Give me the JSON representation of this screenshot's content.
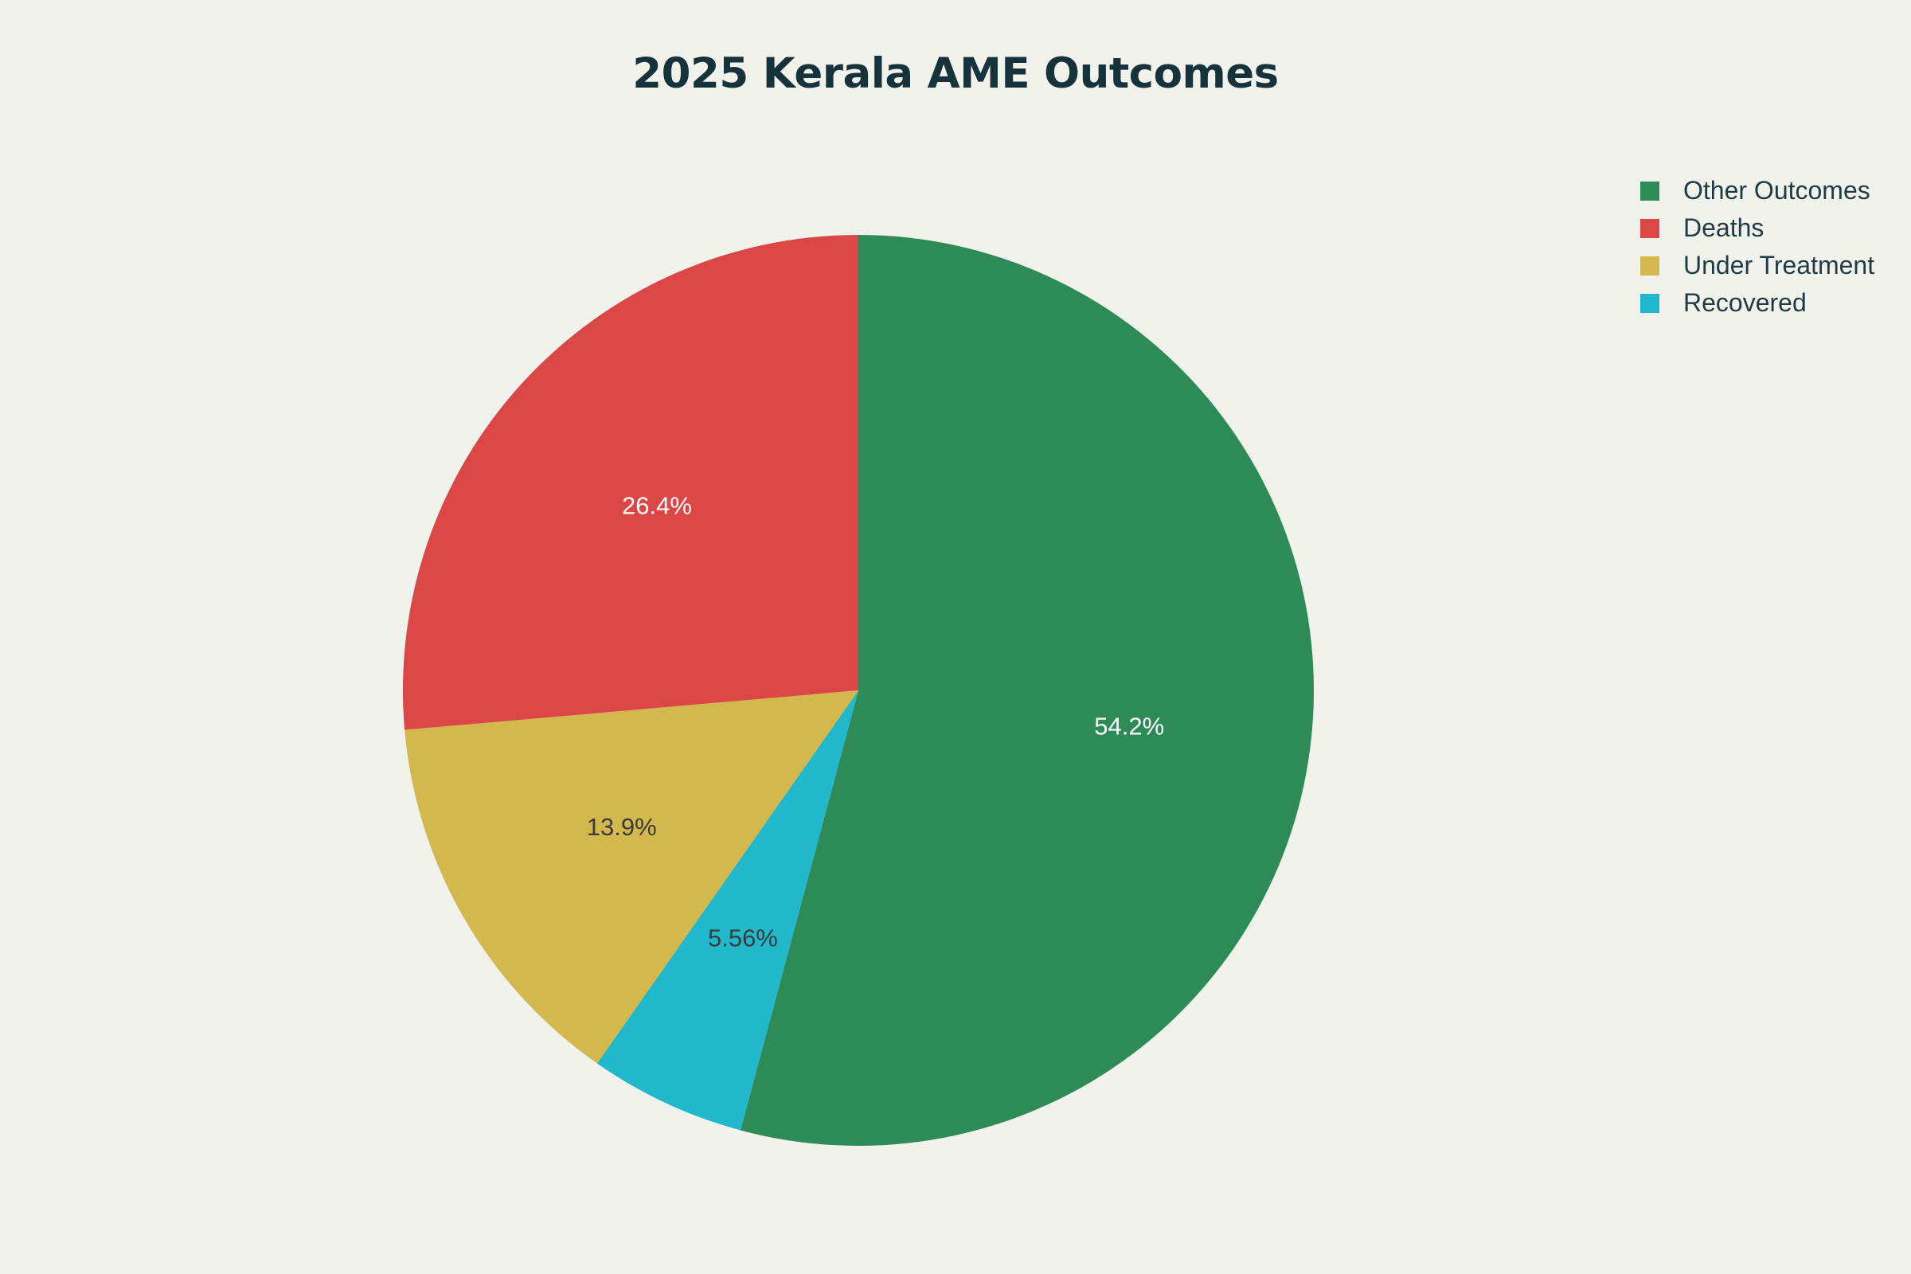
{
  "chart_data": {
    "type": "pie",
    "title": "2025 Kerala AME Outcomes",
    "slices": [
      {
        "label": "Other Outcomes",
        "value": 54.2,
        "display": "54.2%",
        "color": "#2e8b57",
        "label_color": "#ffffff"
      },
      {
        "label": "Recovered",
        "value": 5.56,
        "display": "5.56%",
        "color": "#22b8cc",
        "label_color": "#3b3b3b"
      },
      {
        "label": "Under Treatment",
        "value": 13.9,
        "display": "13.9%",
        "color": "#d3b94d",
        "label_color": "#3b3b3b"
      },
      {
        "label": "Deaths",
        "value": 26.4,
        "display": "26.4%",
        "color": "#db4647",
        "label_color": "#ffffff"
      }
    ],
    "legend": {
      "placement": "top-right",
      "items": [
        {
          "label": "Other Outcomes",
          "color": "#2e8b57"
        },
        {
          "label": "Deaths",
          "color": "#db4647"
        },
        {
          "label": "Under Treatment",
          "color": "#d3b94d"
        },
        {
          "label": "Recovered",
          "color": "#22b8cc"
        }
      ]
    }
  }
}
